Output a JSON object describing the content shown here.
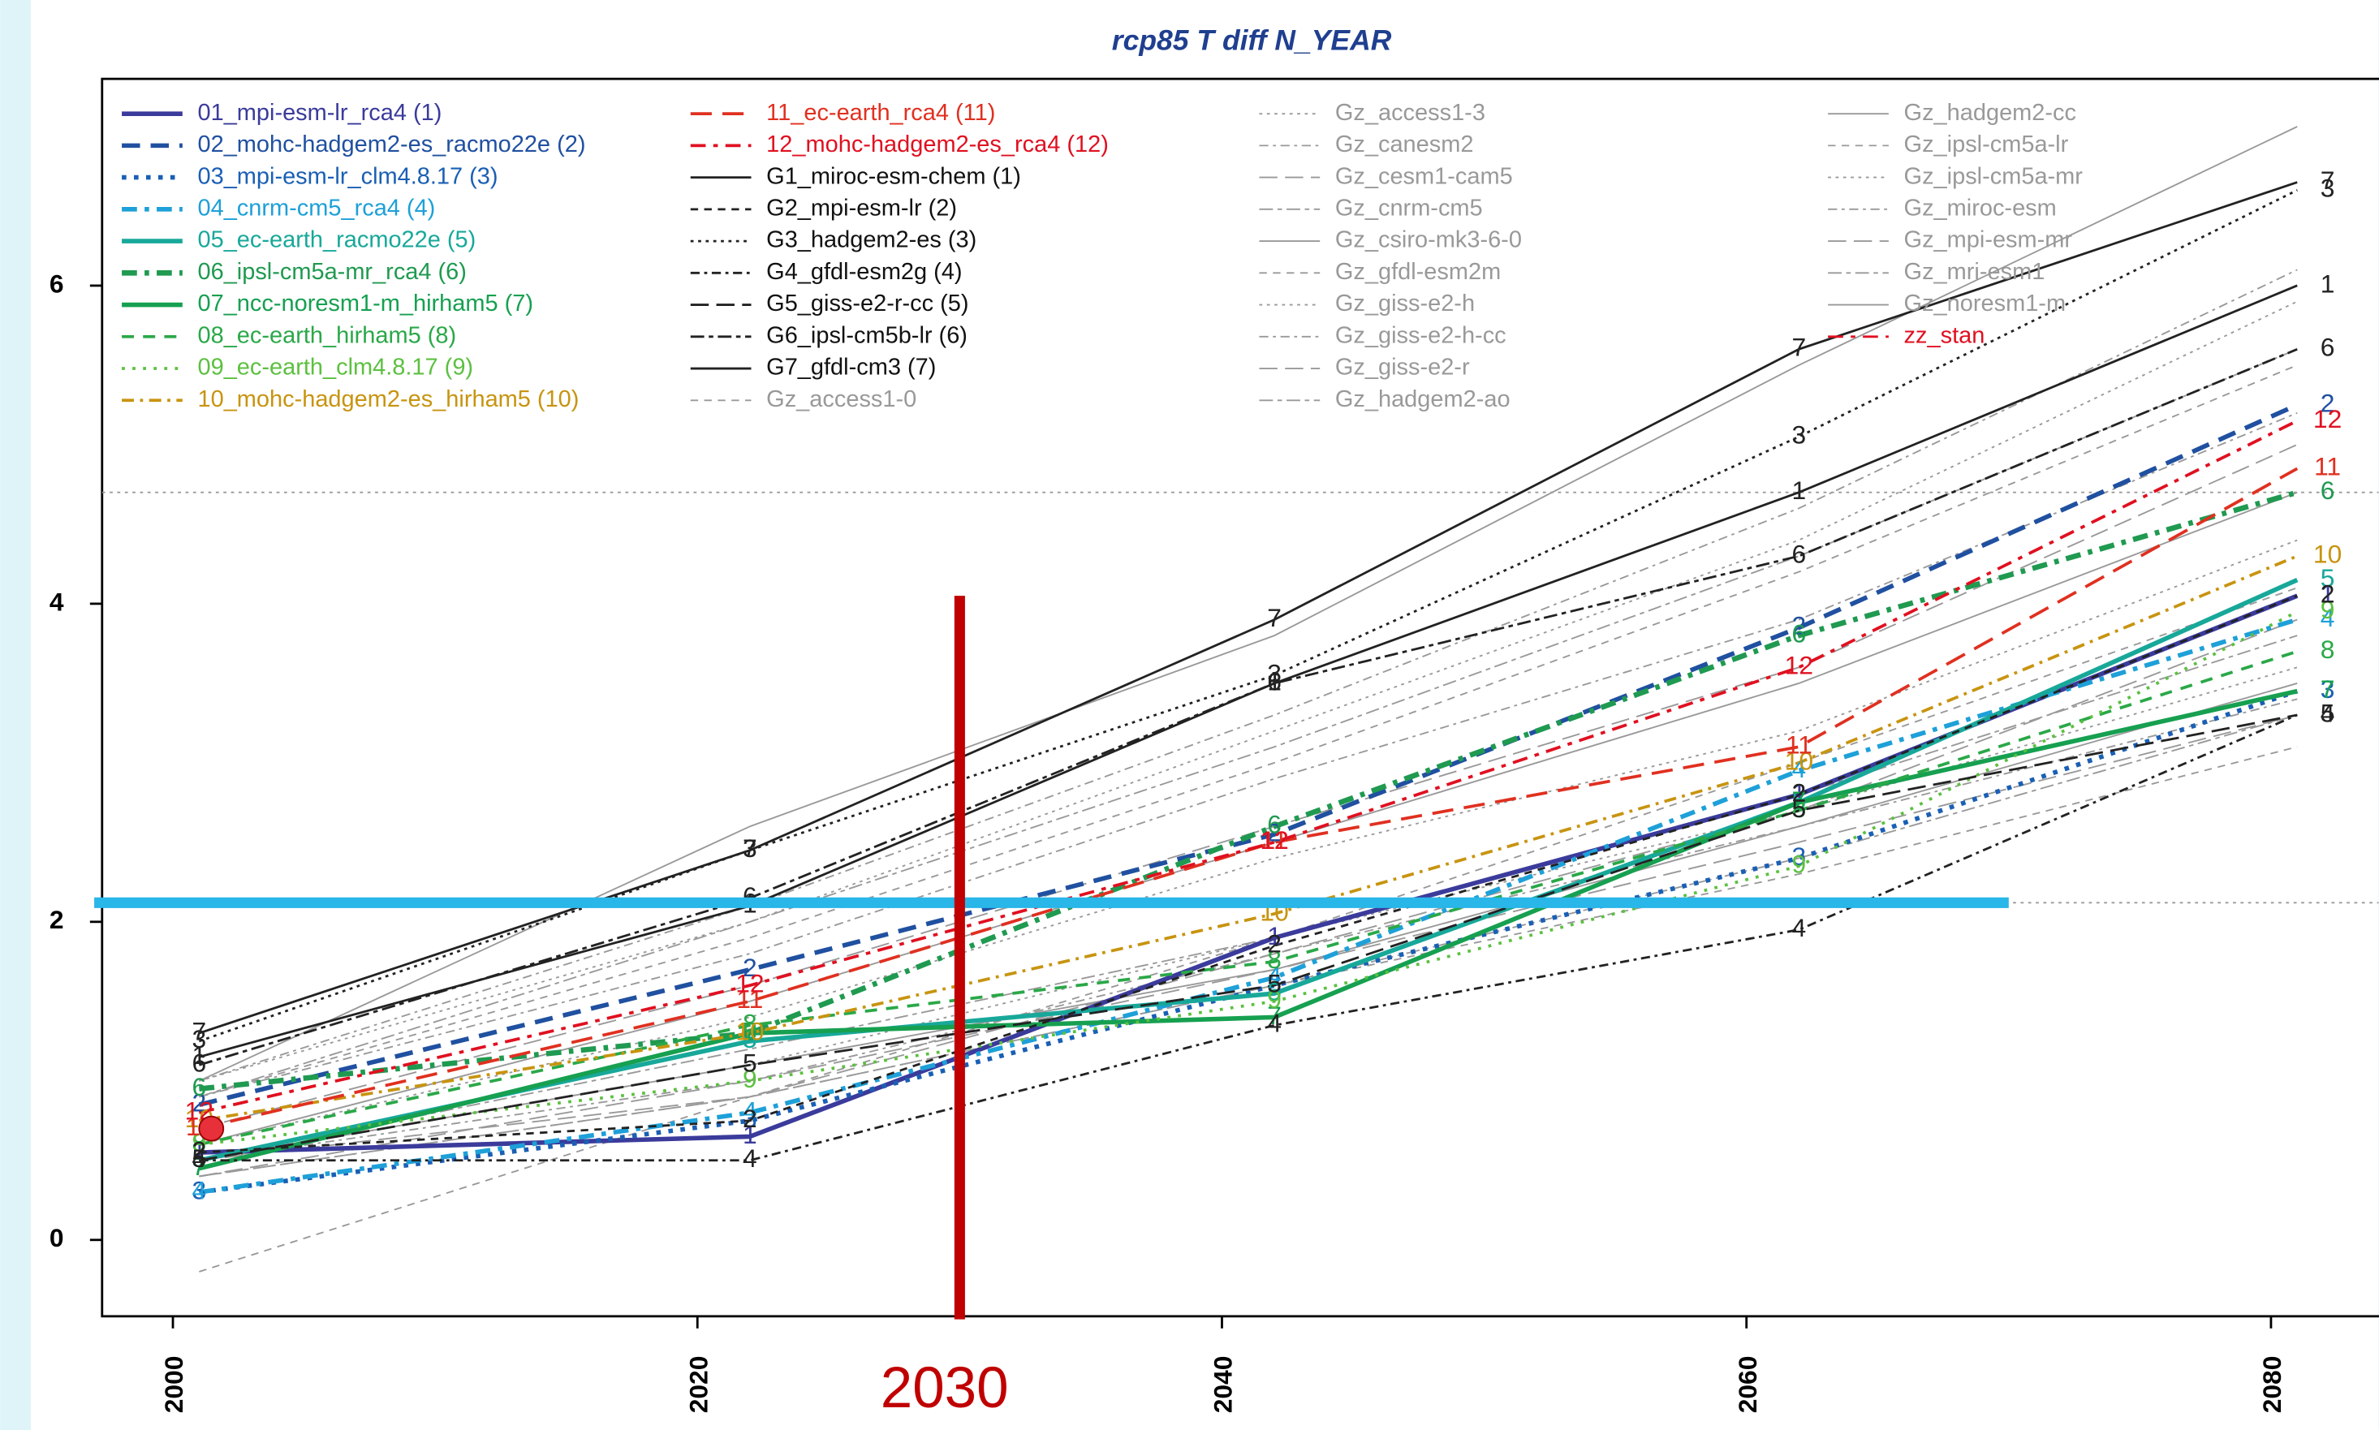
{
  "chart_data": {
    "type": "line",
    "title": "rcp85 T diff N_YEAR",
    "x": [
      2001,
      2022,
      2042,
      2062,
      2081
    ],
    "xlim": [
      1997.3,
      2084.1
    ],
    "xticks": [
      2000,
      2020,
      2040,
      2060,
      2080
    ],
    "ylim": [
      -0.48,
      7.3
    ],
    "yticks": [
      0,
      2,
      4,
      6
    ],
    "reference_lines": [
      4.7,
      2.12
    ],
    "annotations": {
      "vline": {
        "x": 2030,
        "ymax": 4.05,
        "color": "#c00000"
      },
      "hline": {
        "y": 2.12,
        "x": [
          1997,
          2070
        ],
        "color": "#29b6e8"
      },
      "point": {
        "x": 2001,
        "y": 0.7,
        "color": "#e8303a"
      }
    },
    "series": [
      {
        "name": "01_mpi-esm-lr_rca4 (1)",
        "point_label": "1",
        "color": "#3b3b9c",
        "dash": "",
        "width": 3,
        "values": [
          0.55,
          0.65,
          1.9,
          2.8,
          4.05
        ]
      },
      {
        "name": "02_mohc-hadgem2-es_racmo22e (2)",
        "point_label": "2",
        "color": "#2050a0",
        "dash": "12,7",
        "width": 3,
        "values": [
          0.85,
          1.7,
          2.55,
          3.85,
          5.25
        ]
      },
      {
        "name": "03_mpi-esm-lr_clm4.8.17 (3)",
        "point_label": "3",
        "color": "#1a5fb4",
        "dash": "3,5",
        "width": 3,
        "values": [
          0.3,
          0.75,
          1.6,
          2.4,
          3.45
        ]
      },
      {
        "name": "04_cnrm-cm5_rca4 (4)",
        "point_label": "4",
        "color": "#1ea0d8",
        "dash": "10,5,3,5",
        "width": 3,
        "values": [
          0.3,
          0.8,
          1.65,
          2.95,
          3.9
        ]
      },
      {
        "name": "05_ec-earth_racmo22e (5)",
        "point_label": "5",
        "color": "#18a89a",
        "dash": "",
        "width": 3,
        "values": [
          0.5,
          1.25,
          1.55,
          2.75,
          4.15
        ]
      },
      {
        "name": "06_ipsl-cm5a-mr_rca4 (6)",
        "point_label": "6",
        "color": "#1f9a50",
        "dash": "10,5,3,5",
        "width": 3.5,
        "values": [
          0.95,
          1.3,
          2.6,
          3.8,
          4.7
        ]
      },
      {
        "name": "07_ncc-noresm1-m_hirham5 (7)",
        "point_label": "7",
        "color": "#16a050",
        "dash": "",
        "width": 3,
        "values": [
          0.45,
          1.3,
          1.4,
          2.75,
          3.45
        ]
      },
      {
        "name": "08_ec-earth_hirham5 (8)",
        "point_label": "8",
        "color": "#2aa848",
        "dash": "8,6",
        "width": 2,
        "values": [
          0.6,
          1.35,
          1.75,
          2.7,
          3.7
        ]
      },
      {
        "name": "09_ec-earth_clm4.8.17 (9)",
        "point_label": "9",
        "color": "#5cc040",
        "dash": "2,5",
        "width": 2,
        "values": [
          0.6,
          1.0,
          1.5,
          2.35,
          3.95
        ]
      },
      {
        "name": "10_mohc-hadgem2-es_hirham5 (10)",
        "point_label": "10",
        "color": "#c89410",
        "dash": "8,4,2,4",
        "width": 2,
        "values": [
          0.75,
          1.3,
          2.05,
          3.0,
          4.3
        ]
      },
      {
        "name": "11_ec-earth_rca4 (11)",
        "point_label": "11",
        "color": "#e03020",
        "dash": "14,7",
        "width": 2,
        "values": [
          0.7,
          1.5,
          2.5,
          3.1,
          4.85
        ]
      },
      {
        "name": "12_mohc-hadgem2-es_rca4 (12)",
        "point_label": "12",
        "color": "#e01020",
        "dash": "10,5,3,5",
        "width": 2,
        "values": [
          0.8,
          1.6,
          2.5,
          3.6,
          5.15
        ]
      },
      {
        "name": "G1_miroc-esm-chem (1)",
        "point_label": "1",
        "color": "#222222",
        "dash": "",
        "width": 1.5,
        "values": [
          1.15,
          2.1,
          3.5,
          4.7,
          6.0
        ]
      },
      {
        "name": "G2_mpi-esm-lr (2)",
        "point_label": "2",
        "color": "#222222",
        "dash": "5,4",
        "width": 1.5,
        "values": [
          0.55,
          0.75,
          1.85,
          2.8,
          4.05
        ]
      },
      {
        "name": "G3_hadgem2-es (3)",
        "point_label": "3",
        "color": "#222222",
        "dash": "2,3",
        "width": 1.5,
        "values": [
          1.25,
          2.45,
          3.55,
          5.05,
          6.6
        ]
      },
      {
        "name": "G4_gfdl-esm2g (4)",
        "point_label": "4",
        "color": "#222222",
        "dash": "6,3,2,3",
        "width": 1.5,
        "values": [
          0.5,
          0.5,
          1.35,
          1.95,
          3.3
        ]
      },
      {
        "name": "G5_giss-e2-r-cc (5)",
        "point_label": "5",
        "color": "#222222",
        "dash": "12,5",
        "width": 1.5,
        "values": [
          0.5,
          1.1,
          1.6,
          2.7,
          3.3
        ]
      },
      {
        "name": "G6_ipsl-cm5b-lr (6)",
        "point_label": "6",
        "color": "#222222",
        "dash": "9,3,3,3",
        "width": 1.5,
        "values": [
          1.1,
          2.15,
          3.5,
          4.3,
          5.6
        ]
      },
      {
        "name": "G7_gfdl-cm3 (7)",
        "point_label": "7",
        "color": "#222222",
        "dash": "",
        "width": 1.5,
        "values": [
          1.3,
          2.45,
          3.9,
          5.6,
          6.65
        ]
      },
      {
        "name": "Gz_access1-0",
        "color": "#999999",
        "dash": "5,4",
        "width": 1,
        "values": [
          -0.2,
          0.9,
          1.9,
          3.0,
          4.1
        ]
      },
      {
        "name": "Gz_access1-3",
        "color": "#999999",
        "dash": "2,3",
        "width": 1,
        "values": [
          0.6,
          1.4,
          2.4,
          3.2,
          4.4
        ]
      },
      {
        "name": "Gz_canesm2",
        "color": "#999999",
        "dash": "6,3,2,3",
        "width": 1,
        "values": [
          0.9,
          1.8,
          2.9,
          3.9,
          5.2
        ]
      },
      {
        "name": "Gz_cesm1-cam5",
        "color": "#999999",
        "dash": "12,5",
        "width": 1,
        "values": [
          0.7,
          1.6,
          2.6,
          3.6,
          5.0
        ]
      },
      {
        "name": "Gz_cnrm-cm5",
        "color": "#999999",
        "dash": "9,3,3,3",
        "width": 1,
        "values": [
          0.5,
          1.2,
          1.9,
          2.8,
          3.8
        ]
      },
      {
        "name": "Gz_csiro-mk3-6-0",
        "color": "#999999",
        "dash": "",
        "width": 1,
        "values": [
          0.6,
          1.5,
          2.5,
          3.5,
          4.7
        ]
      },
      {
        "name": "Gz_gfdl-esm2m",
        "color": "#999999",
        "dash": "5,4",
        "width": 1,
        "values": [
          0.4,
          0.9,
          1.6,
          2.3,
          3.1
        ]
      },
      {
        "name": "Gz_giss-e2-h",
        "color": "#999999",
        "dash": "2,3",
        "width": 1,
        "values": [
          0.5,
          1.1,
          1.9,
          2.7,
          3.6
        ]
      },
      {
        "name": "Gz_giss-e2-h-cc",
        "color": "#999999",
        "dash": "6,3,2,3",
        "width": 1,
        "values": [
          0.5,
          1.0,
          1.8,
          2.6,
          3.4
        ]
      },
      {
        "name": "Gz_giss-e2-r",
        "color": "#999999",
        "dash": "12,5",
        "width": 1,
        "values": [
          0.4,
          1.0,
          1.7,
          2.5,
          3.3
        ]
      },
      {
        "name": "Gz_hadgem2-ao",
        "color": "#999999",
        "dash": "9,3,3,3",
        "width": 1,
        "values": [
          0.9,
          2.0,
          3.1,
          4.3,
          5.6
        ]
      },
      {
        "name": "Gz_hadgem2-cc",
        "color": "#999999",
        "dash": "",
        "width": 1,
        "values": [
          1.0,
          2.6,
          3.8,
          5.5,
          7.0
        ]
      },
      {
        "name": "Gz_ipsl-cm5a-lr",
        "color": "#999999",
        "dash": "5,4",
        "width": 1,
        "values": [
          0.9,
          1.9,
          3.0,
          4.2,
          5.5
        ]
      },
      {
        "name": "Gz_ipsl-cm5a-mr",
        "color": "#999999",
        "dash": "2,3",
        "width": 1,
        "values": [
          1.0,
          2.0,
          3.2,
          4.4,
          5.9
        ]
      },
      {
        "name": "Gz_miroc-esm",
        "color": "#999999",
        "dash": "6,3,2,3",
        "width": 1,
        "values": [
          1.0,
          2.1,
          3.3,
          4.6,
          6.1
        ]
      },
      {
        "name": "Gz_mpi-esm-mr",
        "color": "#999999",
        "dash": "12,5",
        "width": 1,
        "values": [
          0.5,
          0.9,
          1.8,
          2.7,
          3.9
        ]
      },
      {
        "name": "Gz_mri-esm1",
        "color": "#999999",
        "dash": "9,3,3,3",
        "width": 1,
        "values": [
          0.4,
          0.9,
          1.6,
          2.4,
          3.3
        ]
      },
      {
        "name": "Gz_noresm1-m",
        "color": "#999999",
        "dash": "",
        "width": 1,
        "values": [
          0.5,
          1.1,
          1.7,
          2.6,
          3.5
        ]
      },
      {
        "name": "zz_stan",
        "color": "#e01020",
        "dash": "10,5,3,5",
        "width": 1.5,
        "values": [
          null,
          null,
          null,
          null,
          null
        ]
      }
    ]
  }
}
